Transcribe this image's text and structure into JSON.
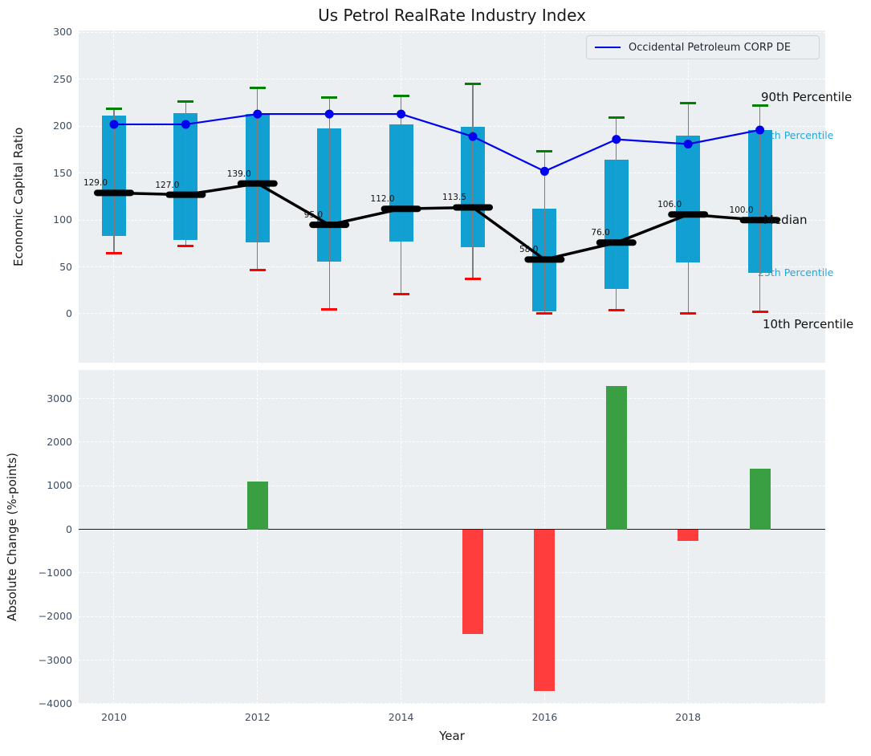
{
  "title": "Us Petrol RealRate Industry Index",
  "legend": {
    "label": "Occidental Petroleum CORP DE"
  },
  "top_axis": {
    "ylabel": "Economic Capital Ratio",
    "yticks": [
      300,
      250,
      200,
      150,
      100,
      50,
      0
    ]
  },
  "bottom_axis": {
    "ylabel": "Absolute Change (%-points)",
    "xlabel": "Year",
    "yticks": [
      3000,
      2000,
      1000,
      0,
      -1000,
      -2000,
      -3000,
      -4000
    ],
    "xticks": [
      2010,
      2012,
      2014,
      2016,
      2018
    ]
  },
  "annotations": {
    "p90": "90th Percentile",
    "p75": "75th Percentile",
    "median": "Median",
    "p25": "25th Percentile",
    "p10": "10th Percentile"
  },
  "colors": {
    "box_fill": "#12a0d3",
    "cap_high": "#008000",
    "cap_low": "#ff0000",
    "whisker": "#7d7d7d",
    "median_line": "#000000",
    "company_line": "#0000f0",
    "bar_positive": "#3a9e42",
    "bar_negative": "#ff3d3d",
    "annotation_cyan": "#25a6d9",
    "annotation_black": "#111111",
    "plot_background": "#ebeff1"
  },
  "chart_data": [
    {
      "type": "box-whisker+line",
      "title": "Us Petrol RealRate Industry Index",
      "ylabel": "Economic Capital Ratio",
      "ylim": [
        -52,
        302
      ],
      "grid": true,
      "x": [
        2010,
        2011,
        2012,
        2013,
        2014,
        2015,
        2016,
        2017,
        2018,
        2019
      ],
      "series": [
        {
          "name": "90th Percentile",
          "values": [
            219,
            226,
            241,
            231,
            232,
            245,
            173,
            209,
            225,
            222
          ]
        },
        {
          "name": "75th Percentile",
          "values": [
            211,
            214,
            213,
            198,
            202,
            199,
            112,
            164,
            190,
            196
          ]
        },
        {
          "name": "Median",
          "values": [
            129,
            127,
            139,
            95,
            112,
            113.5,
            58,
            76,
            106,
            100
          ]
        },
        {
          "name": "25th Percentile",
          "values": [
            83,
            79,
            76,
            56,
            77,
            71,
            3,
            27,
            55,
            44
          ]
        },
        {
          "name": "10th Percentile",
          "values": [
            65,
            72,
            47,
            5,
            21,
            37,
            1,
            4,
            1,
            2
          ]
        },
        {
          "name": "Occidental Petroleum CORP DE",
          "values": [
            202,
            202,
            213,
            213,
            213,
            189,
            152,
            186,
            181,
            196
          ]
        }
      ],
      "median_labels": [
        "129.0",
        "127.0",
        "139.0",
        "95.0",
        "112.0",
        "113.5",
        "58.0",
        "76.0",
        "106.0",
        "100.0"
      ],
      "legend_position": "upper right"
    },
    {
      "type": "bar",
      "ylabel": "Absolute Change (%-points)",
      "xlabel": "Year",
      "ylim": [
        -4000,
        3660
      ],
      "grid": true,
      "x": [
        2010,
        2011,
        2012,
        2013,
        2014,
        2015,
        2016,
        2017,
        2018,
        2019
      ],
      "values": [
        0,
        0,
        1100,
        0,
        0,
        -2400,
        -3700,
        3300,
        -270,
        1400
      ]
    }
  ]
}
